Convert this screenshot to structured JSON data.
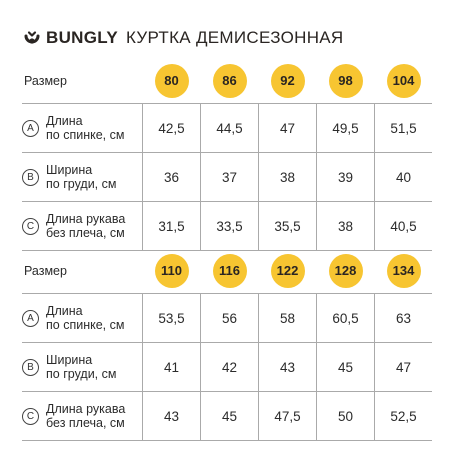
{
  "header": {
    "brand": "BUNGLY",
    "title": "КУРТКА ДЕМИСЕЗОННАЯ"
  },
  "colors": {
    "badge": "#f7c531",
    "text": "#2a2522"
  },
  "tables": [
    {
      "size_label": "Размер",
      "sizes": [
        "80",
        "86",
        "92",
        "98",
        "104"
      ],
      "rows": [
        {
          "marker": "A",
          "label_lines": [
            "Длина",
            "по спинке, см"
          ],
          "values": [
            "42,5",
            "44,5",
            "47",
            "49,5",
            "51,5"
          ]
        },
        {
          "marker": "B",
          "label_lines": [
            "Ширина",
            "по груди, см"
          ],
          "values": [
            "36",
            "37",
            "38",
            "39",
            "40"
          ]
        },
        {
          "marker": "C",
          "label_lines": [
            "Длина рукава",
            "без плеча, см"
          ],
          "values": [
            "31,5",
            "33,5",
            "35,5",
            "38",
            "40,5"
          ]
        }
      ]
    },
    {
      "size_label": "Размер",
      "sizes": [
        "110",
        "116",
        "122",
        "128",
        "134"
      ],
      "rows": [
        {
          "marker": "A",
          "label_lines": [
            "Длина",
            "по спинке, см"
          ],
          "values": [
            "53,5",
            "56",
            "58",
            "60,5",
            "63"
          ]
        },
        {
          "marker": "B",
          "label_lines": [
            "Ширина",
            "по груди, см"
          ],
          "values": [
            "41",
            "42",
            "43",
            "45",
            "47"
          ]
        },
        {
          "marker": "C",
          "label_lines": [
            "Длина рукава",
            "без плеча, см"
          ],
          "values": [
            "43",
            "45",
            "47,5",
            "50",
            "52,5"
          ]
        }
      ]
    }
  ]
}
